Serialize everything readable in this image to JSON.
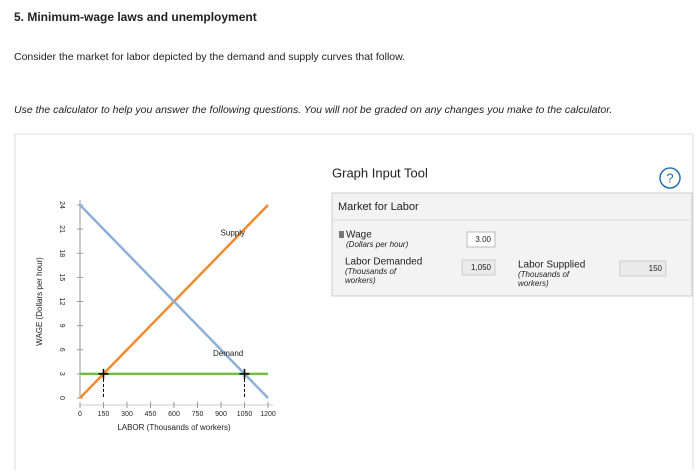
{
  "header": {
    "title": "5. Minimum-wage laws and unemployment",
    "intro": "Consider the market for labor depicted by the demand and supply curves that follow.",
    "instructions": "Use the calculator to help you answer the following questions. You will not be graded on any changes you make to the calculator."
  },
  "graph": {
    "type": "line",
    "x_label": "LABOR (Thousands of workers)",
    "y_label": "WAGE (Dollars per hour)",
    "xlim": [
      0,
      1200
    ],
    "xticks": [
      0,
      150,
      300,
      450,
      600,
      750,
      900,
      1050,
      1200
    ],
    "ylim": [
      0,
      24
    ],
    "yticks": [
      0,
      3,
      6,
      9,
      12,
      15,
      18,
      21,
      24
    ],
    "series": [
      {
        "name": "Supply",
        "color": "#f28a30",
        "x": [
          0,
          1200
        ],
        "values": [
          0,
          24
        ]
      },
      {
        "name": "Demand",
        "color": "#8eb0d8",
        "x": [
          0,
          1200
        ],
        "values": [
          24,
          0
        ]
      }
    ],
    "wage_line": {
      "color": "#70bf44",
      "x": [
        0,
        1200
      ],
      "values": [
        3,
        3
      ]
    },
    "markers": {
      "x": [
        150,
        1050
      ],
      "values": [
        3,
        3
      ]
    }
  },
  "tool": {
    "title": "Graph Input Tool",
    "help": "?",
    "section": "Market for Labor",
    "wage": {
      "label": "Wage",
      "unit": "(Dollars per hour)",
      "value": "3.00"
    },
    "demanded": {
      "label": "Labor Demanded",
      "unit_1": "(Thousands of",
      "unit_2": "workers)",
      "value": "1,050"
    },
    "supplied": {
      "label": "Labor Supplied",
      "unit_1": "(Thousands of",
      "unit_2": "workers)",
      "value": "150"
    }
  }
}
